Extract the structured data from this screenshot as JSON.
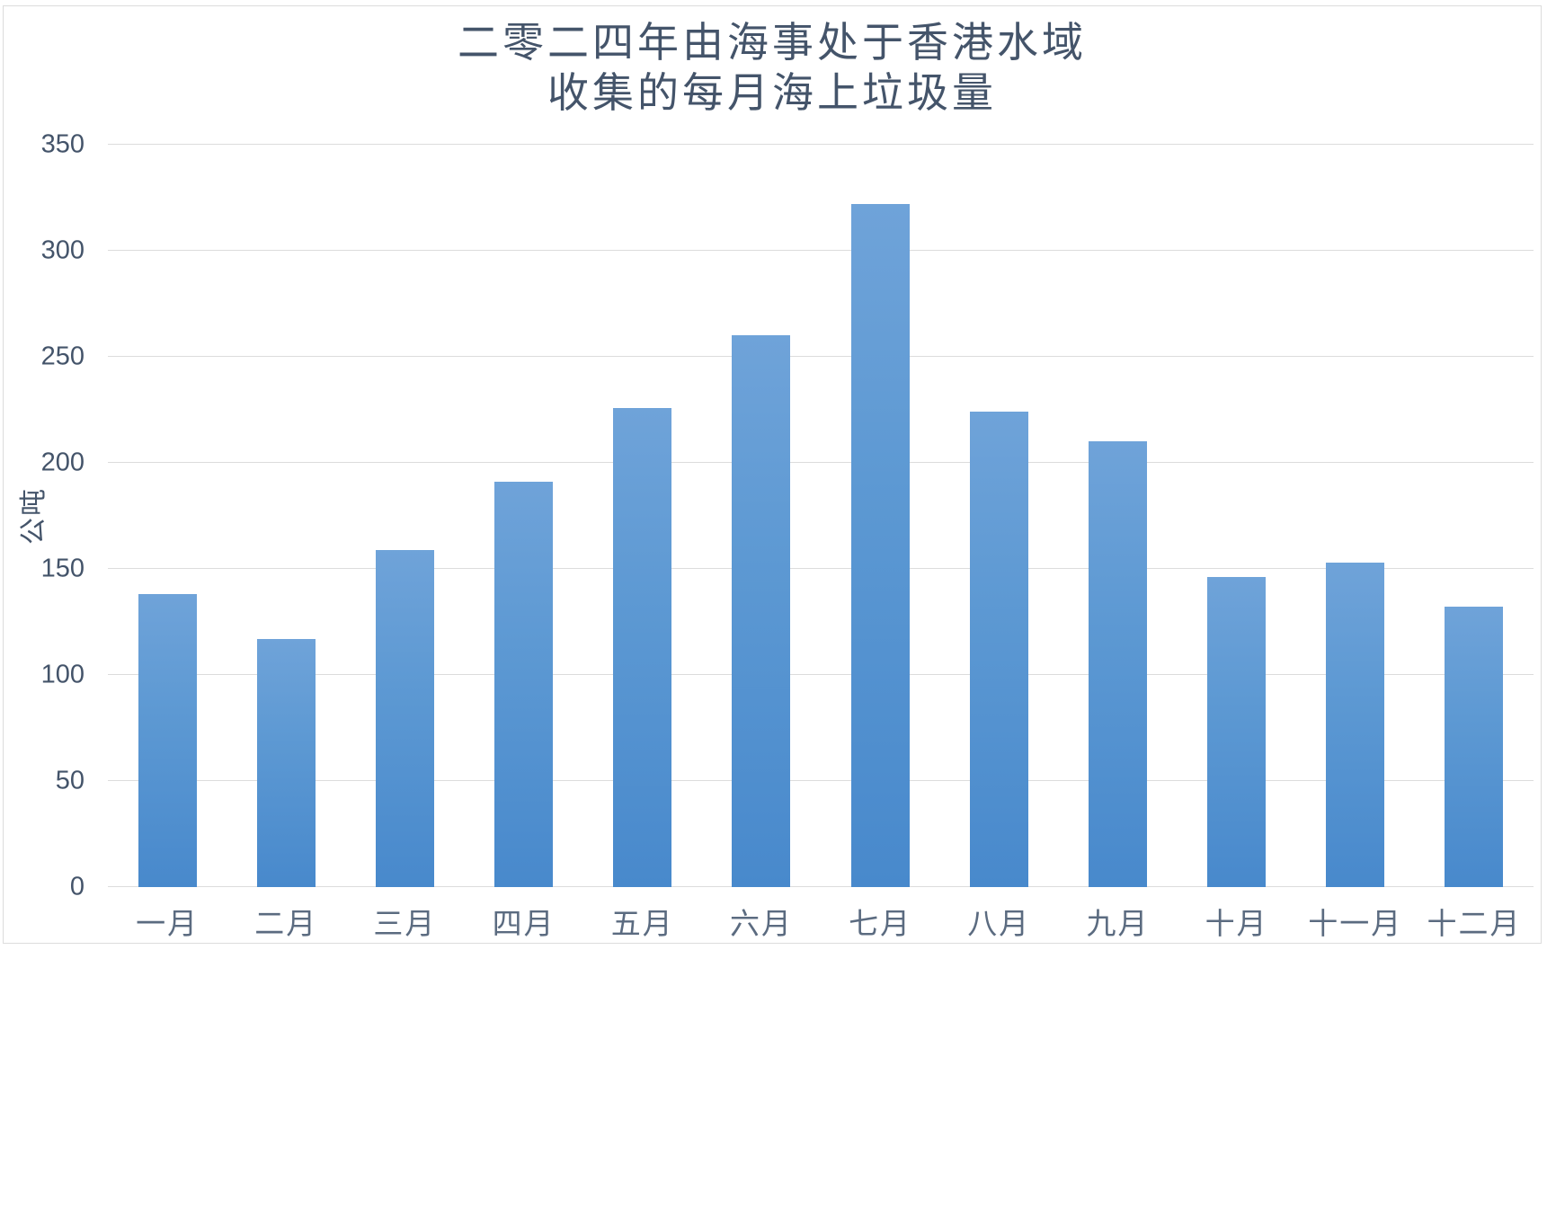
{
  "title": {
    "line1": "二零二四年由海事处于香港水域",
    "line2": "收集的每月海上垃圾量"
  },
  "y_axis": {
    "label": "公吨",
    "ticks": [
      0,
      50,
      100,
      150,
      200,
      250,
      300,
      350
    ],
    "max": 350
  },
  "chart_data": {
    "type": "bar",
    "title": "二零二四年由海事处于香港水域 收集的每月海上垃圾量",
    "categories": [
      "一月",
      "二月",
      "三月",
      "四月",
      "五月",
      "六月",
      "七月",
      "八月",
      "九月",
      "十月",
      "十一月",
      "十二月"
    ],
    "values": [
      138,
      117,
      159,
      191,
      226,
      260,
      322,
      224,
      210,
      146,
      153,
      132
    ],
    "xlabel": "",
    "ylabel": "公吨",
    "ylim": [
      0,
      350
    ],
    "ytick_step": 50,
    "grid": true,
    "legend": false
  },
  "colors": {
    "bar_gradient_top": "#6fa3d9",
    "bar_gradient_bottom": "#4889cc",
    "gridline": "#dcdcdc",
    "title_text": "#44546a",
    "axis_number_text": "#44546a",
    "month_text": "#5b6b80",
    "frame_border": "#dcdcdc"
  }
}
